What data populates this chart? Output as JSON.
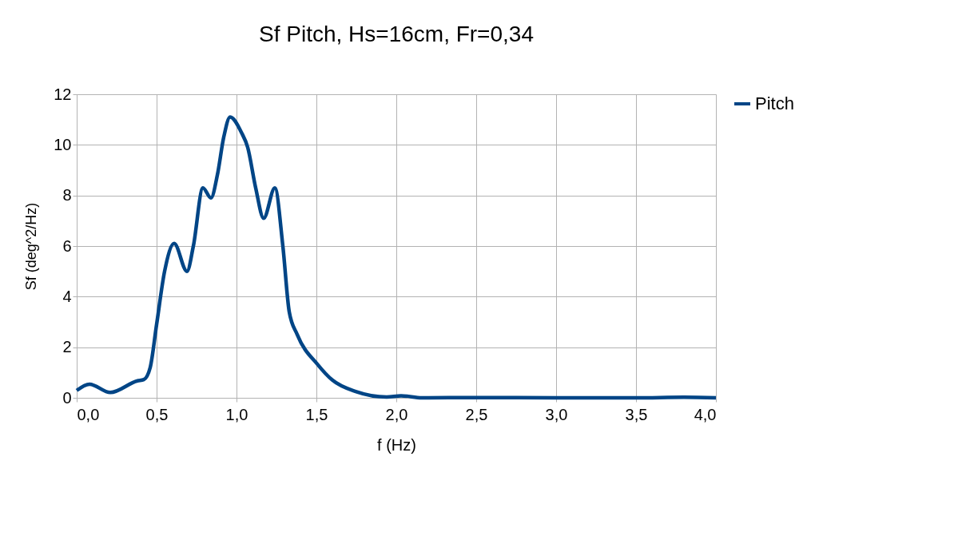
{
  "chart_data": {
    "type": "line",
    "title": "Sf Pitch, Hs=16cm, Fr=0,34",
    "xlabel": "f (Hz)",
    "ylabel": "Sf (deg^2/Hz)",
    "xlim": [
      0,
      4
    ],
    "xticks": [
      {
        "value": 0,
        "label": "0,0"
      },
      {
        "value": 0.5,
        "label": "0,5"
      },
      {
        "value": 1,
        "label": "1,0"
      },
      {
        "value": 1.5,
        "label": "1,5"
      },
      {
        "value": 2,
        "label": "2,0"
      },
      {
        "value": 2.5,
        "label": "2,5"
      },
      {
        "value": 3,
        "label": "3,0"
      },
      {
        "value": 3.5,
        "label": "3,5"
      },
      {
        "value": 4,
        "label": "4,0"
      }
    ],
    "ylim": [
      0,
      12
    ],
    "yticks": [
      0,
      2,
      4,
      6,
      8,
      10,
      12
    ],
    "grid": true,
    "legend": "right",
    "marker": "none",
    "line_style": "solid",
    "x": [
      0,
      0.08,
      0.21,
      0.38,
      0.42,
      0.46,
      0.5,
      0.55,
      0.61,
      0.69,
      0.73,
      0.79,
      0.84,
      0.88,
      0.92,
      0.96,
      1.03,
      1.07,
      1.12,
      1.17,
      1.24,
      1.29,
      1.33,
      1.38,
      1.51,
      1.6,
      1.75,
      1.94,
      2.03,
      2.16,
      2.5,
      3.0,
      3.5,
      3.8,
      4.0
    ],
    "series": [
      {
        "name": "Pitch",
        "color": "#004586",
        "values": [
          0.29,
          0.54,
          0.21,
          0.67,
          0.72,
          1.2,
          2.9,
          5.0,
          6.1,
          5.0,
          6.0,
          8.3,
          7.9,
          8.8,
          10.3,
          11.1,
          10.5,
          9.9,
          8.3,
          7.1,
          8.3,
          6.0,
          3.4,
          2.5,
          1.3,
          0.7,
          0.24,
          0.03,
          0.08,
          0.0,
          0.01,
          0.0,
          0.0,
          0.02,
          0.0
        ]
      }
    ]
  }
}
